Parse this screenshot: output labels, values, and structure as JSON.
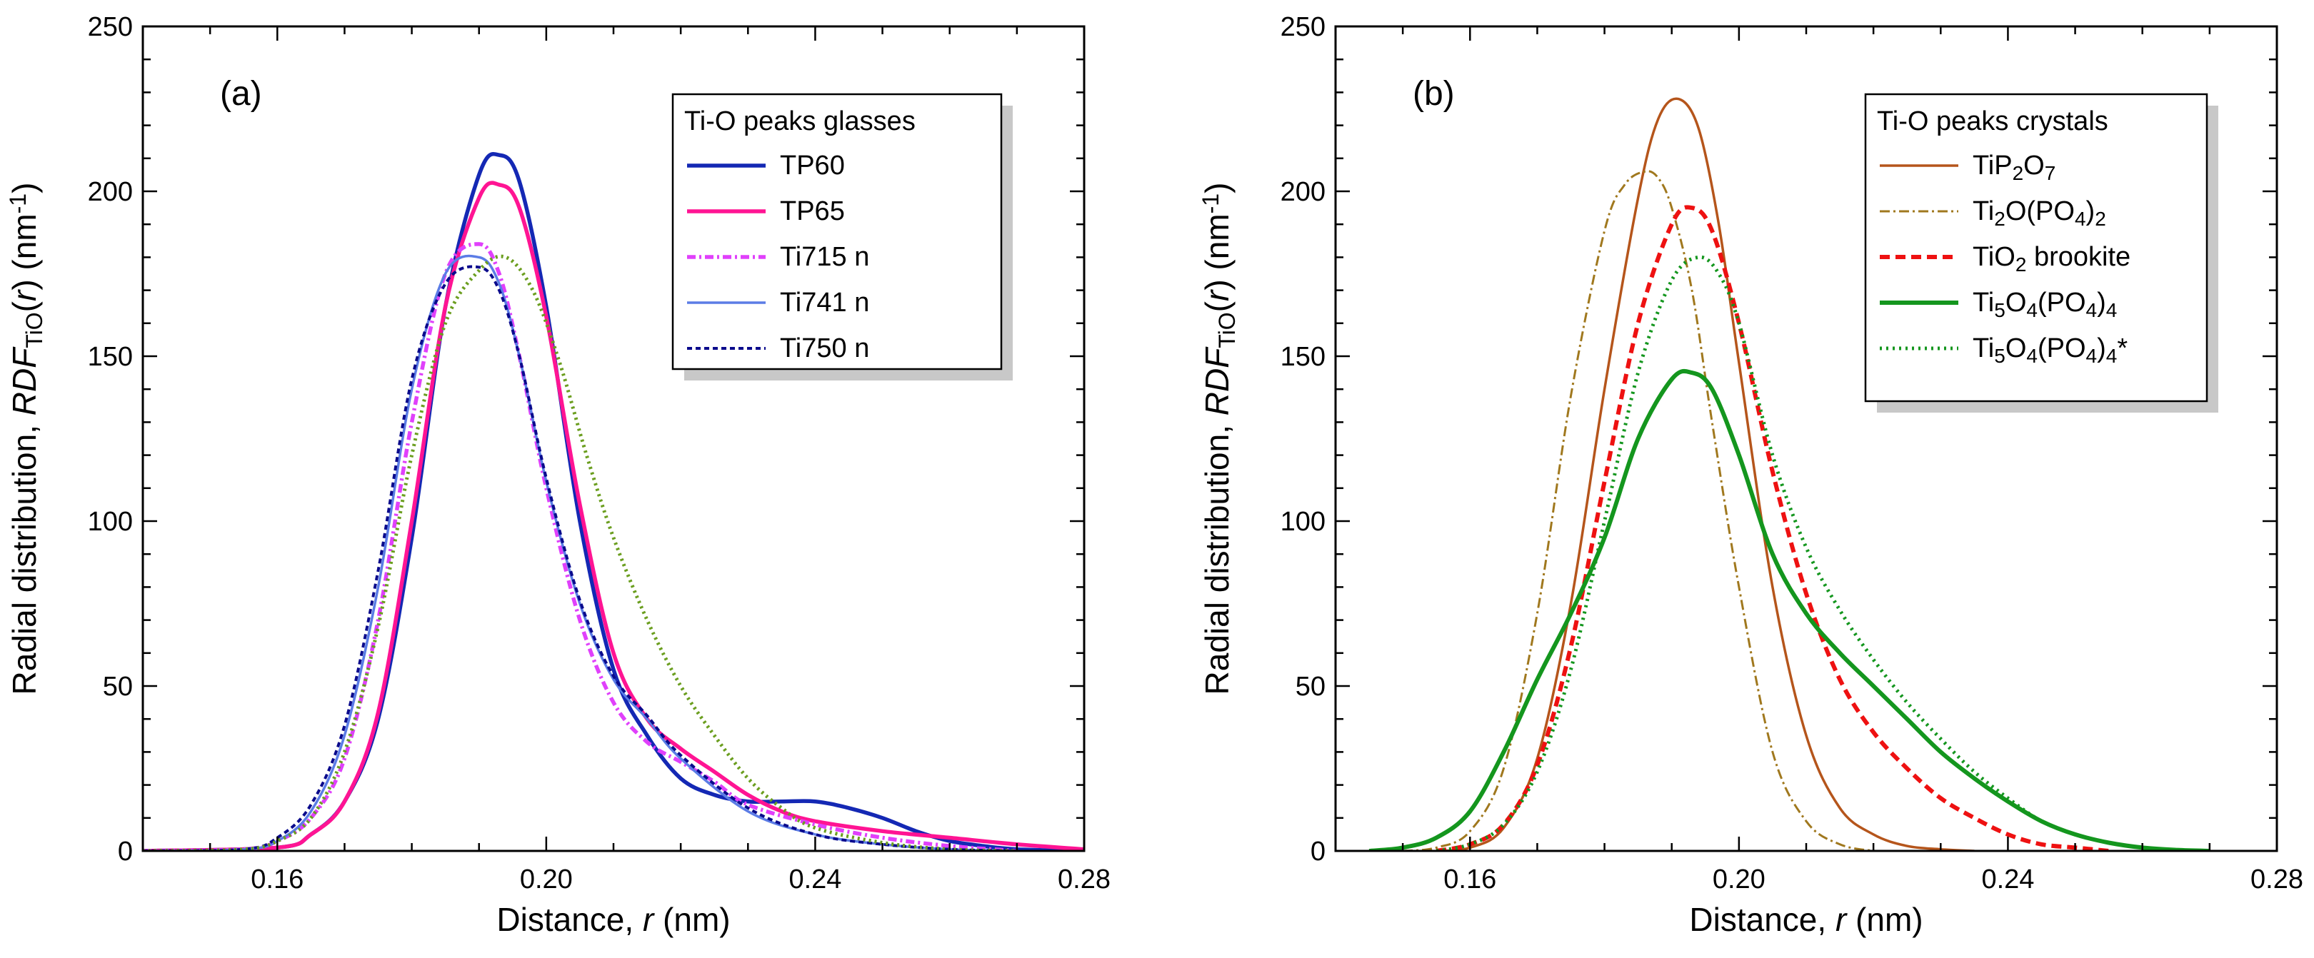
{
  "chart_data": [
    {
      "type": "line",
      "panel_label": "(a)",
      "xlabel": "Distance, r (nm)",
      "ylabel": "Radial distribution, RDF_TiO(r) (nm^-1)",
      "xlim": [
        0.14,
        0.28
      ],
      "ylim": [
        0,
        250
      ],
      "xticks": [
        0.16,
        0.2,
        0.24,
        0.28
      ],
      "xtick_labels": [
        "0.16",
        "0.20",
        "0.24",
        "0.28"
      ],
      "yticks": [
        0,
        50,
        100,
        150,
        200,
        250
      ],
      "ytick_labels": [
        "0",
        "50",
        "100",
        "150",
        "200",
        "250"
      ],
      "grid": false,
      "legend_position": "top-right",
      "legend_title": "Ti-O peaks glasses",
      "series": [
        {
          "name": "TP60",
          "color": "#1428b4",
          "dash": "solid",
          "width": 5.5,
          "x": [
            0.14,
            0.16,
            0.165,
            0.17,
            0.175,
            0.18,
            0.185,
            0.19,
            0.193,
            0.196,
            0.2,
            0.205,
            0.21,
            0.215,
            0.22,
            0.225,
            0.23,
            0.235,
            0.24,
            0.245,
            0.25,
            0.255,
            0.26,
            0.265,
            0.27,
            0.28
          ],
          "y": [
            0,
            1,
            5,
            15,
            40,
            95,
            165,
            205,
            211,
            203,
            165,
            100,
            55,
            35,
            22,
            17,
            15,
            15,
            15,
            13,
            10,
            6,
            3,
            1.5,
            0.5,
            0
          ]
        },
        {
          "name": "TP65",
          "color": "#ff1493",
          "dash": "solid",
          "width": 5.5,
          "x": [
            0.14,
            0.16,
            0.165,
            0.17,
            0.175,
            0.18,
            0.185,
            0.19,
            0.193,
            0.196,
            0.2,
            0.205,
            0.21,
            0.215,
            0.22,
            0.225,
            0.23,
            0.235,
            0.24,
            0.25,
            0.26,
            0.27,
            0.28
          ],
          "y": [
            0,
            1,
            5,
            15,
            42,
            100,
            165,
            198,
            202,
            195,
            162,
            105,
            60,
            40,
            31,
            24,
            17,
            12,
            9,
            6,
            4,
            2,
            0.5
          ]
        },
        {
          "name": "Ti715 n",
          "color": "#e040fb",
          "dash": "12,5,3,5",
          "width": 5.5,
          "x": [
            0.14,
            0.155,
            0.16,
            0.165,
            0.17,
            0.175,
            0.18,
            0.185,
            0.19,
            0.193,
            0.196,
            0.2,
            0.205,
            0.21,
            0.215,
            0.22,
            0.225,
            0.23,
            0.24,
            0.25,
            0.26,
            0.27
          ],
          "y": [
            0,
            0.5,
            3,
            10,
            28,
            70,
            130,
            175,
            184,
            175,
            150,
            110,
            70,
            45,
            33,
            27,
            21,
            14,
            8,
            4,
            1.5,
            0
          ]
        },
        {
          "name": "Ti741 n",
          "color": "#5b7ce6",
          "dash": "solid",
          "width": 3.5,
          "x": [
            0.14,
            0.155,
            0.16,
            0.165,
            0.17,
            0.175,
            0.18,
            0.185,
            0.19,
            0.193,
            0.196,
            0.2,
            0.205,
            0.21,
            0.215,
            0.22,
            0.23,
            0.24,
            0.25,
            0.26,
            0.27
          ],
          "y": [
            0,
            0.5,
            3,
            12,
            35,
            80,
            140,
            175,
            180,
            172,
            150,
            112,
            75,
            52,
            40,
            28,
            12,
            5,
            2,
            0.5,
            0
          ]
        },
        {
          "name": "Ti750 n",
          "color": "#0a0a8c",
          "dash": "7,5",
          "width": 4,
          "x": [
            0.14,
            0.155,
            0.16,
            0.165,
            0.17,
            0.175,
            0.18,
            0.185,
            0.19,
            0.193,
            0.196,
            0.2,
            0.205,
            0.21,
            0.215,
            0.22,
            0.23,
            0.24,
            0.25,
            0.26,
            0.27
          ],
          "y": [
            0,
            0.5,
            4,
            14,
            38,
            85,
            143,
            172,
            177,
            170,
            150,
            113,
            76,
            53,
            41,
            29,
            13,
            5,
            2,
            0.5,
            0
          ]
        },
        {
          "name": "",
          "color": "#6b9e1f",
          "dash": "3,5",
          "width": 5,
          "x": [
            0.14,
            0.155,
            0.16,
            0.165,
            0.17,
            0.175,
            0.18,
            0.185,
            0.19,
            0.194,
            0.198,
            0.202,
            0.206,
            0.21,
            0.215,
            0.22,
            0.225,
            0.23,
            0.235,
            0.24,
            0.25,
            0.26,
            0.27
          ],
          "y": [
            0,
            0.5,
            3,
            10,
            30,
            68,
            120,
            160,
            176,
            180,
            170,
            148,
            120,
            95,
            70,
            50,
            35,
            22,
            13,
            7,
            2.5,
            0.5,
            0
          ]
        }
      ]
    },
    {
      "type": "line",
      "panel_label": "(b)",
      "xlabel": "Distance, r (nm)",
      "ylabel": "Radial distribution, RDF_TiO(r) (nm^-1)",
      "xlim": [
        0.14,
        0.28
      ],
      "ylim": [
        0,
        250
      ],
      "xticks": [
        0.16,
        0.2,
        0.24,
        0.28
      ],
      "xtick_labels": [
        "0.16",
        "0.20",
        "0.24",
        "0.28"
      ],
      "yticks": [
        0,
        50,
        100,
        150,
        200,
        250
      ],
      "ytick_labels": [
        "0",
        "50",
        "100",
        "150",
        "200",
        "250"
      ],
      "grid": false,
      "legend_position": "top-right",
      "legend_title": "Ti-O peaks crystals",
      "series": [
        {
          "name": "TiP2O7",
          "color": "#b5551b",
          "dash": "solid",
          "width": 3.5,
          "x": [
            0.155,
            0.16,
            0.165,
            0.17,
            0.175,
            0.18,
            0.185,
            0.188,
            0.191,
            0.194,
            0.197,
            0.2,
            0.205,
            0.21,
            0.215,
            0.22,
            0.225,
            0.23,
            0.235
          ],
          "y": [
            0,
            1,
            7,
            28,
            75,
            140,
            198,
            222,
            228,
            219,
            190,
            148,
            80,
            35,
            13,
            5,
            1.5,
            0.5,
            0
          ]
        },
        {
          "name": "Ti2O(PO4)2",
          "color": "#a0781e",
          "dash": "14,5,3,5",
          "width": 3,
          "x": [
            0.15,
            0.155,
            0.16,
            0.165,
            0.17,
            0.175,
            0.18,
            0.183,
            0.186,
            0.188,
            0.19,
            0.193,
            0.196,
            0.2,
            0.205,
            0.21,
            0.215,
            0.22
          ],
          "y": [
            0,
            1,
            6,
            25,
            72,
            138,
            188,
            202,
            206,
            204,
            195,
            170,
            130,
            80,
            30,
            9,
            2,
            0
          ]
        },
        {
          "name": "TiO2 brookite",
          "color": "#ee1111",
          "dash": "14,8",
          "width": 6,
          "x": [
            0.155,
            0.16,
            0.165,
            0.17,
            0.175,
            0.18,
            0.185,
            0.19,
            0.193,
            0.196,
            0.2,
            0.205,
            0.21,
            0.215,
            0.22,
            0.225,
            0.23,
            0.235,
            0.24,
            0.245,
            0.25,
            0.255
          ],
          "y": [
            0,
            2,
            8,
            26,
            62,
            112,
            160,
            190,
            195,
            188,
            160,
            115,
            78,
            52,
            36,
            25,
            16,
            10,
            5,
            2,
            1,
            0
          ]
        },
        {
          "name": "Ti5O4(PO4)4",
          "color": "#14961e",
          "dash": "solid",
          "width": 6,
          "x": [
            0.145,
            0.15,
            0.155,
            0.16,
            0.165,
            0.17,
            0.175,
            0.18,
            0.185,
            0.19,
            0.193,
            0.196,
            0.2,
            0.205,
            0.21,
            0.215,
            0.22,
            0.225,
            0.23,
            0.235,
            0.24,
            0.245,
            0.25,
            0.255,
            0.26,
            0.265,
            0.27
          ],
          "y": [
            0,
            1,
            4,
            12,
            30,
            52,
            72,
            95,
            125,
            143,
            145,
            140,
            120,
            90,
            72,
            60,
            50,
            40,
            30,
            22,
            15,
            9,
            5,
            2.5,
            1,
            0.3,
            0
          ]
        },
        {
          "name": "Ti5O4(PO4)4*",
          "color": "#14961e",
          "dash": "3,6",
          "width": 5,
          "x": [
            0.155,
            0.16,
            0.165,
            0.17,
            0.175,
            0.18,
            0.185,
            0.19,
            0.194,
            0.197,
            0.2,
            0.205,
            0.21,
            0.215,
            0.22,
            0.225,
            0.23,
            0.235,
            0.24,
            0.245,
            0.25,
            0.255,
            0.26,
            0.265
          ],
          "y": [
            0,
            2,
            8,
            24,
            55,
            100,
            145,
            173,
            180,
            175,
            160,
            120,
            92,
            73,
            58,
            45,
            34,
            24,
            16,
            9,
            5,
            2.5,
            1,
            0
          ]
        }
      ]
    }
  ]
}
